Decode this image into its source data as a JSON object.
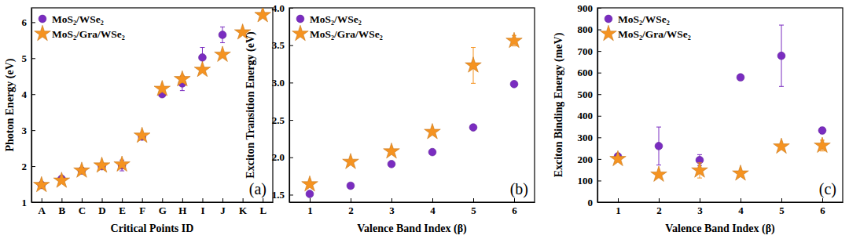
{
  "chart_data": [
    {
      "type": "scatter",
      "xlabel": "Critical Points ID",
      "ylabel": "Photon Energy (eV)",
      "categories": [
        "A",
        "B",
        "C",
        "D",
        "E",
        "F",
        "G",
        "H",
        "I",
        "J",
        "K",
        "L"
      ],
      "ylim": [
        1,
        6.4
      ],
      "yticks": [
        1,
        2,
        3,
        4,
        5,
        6
      ],
      "grid": false,
      "legend": "upper left",
      "annotations": [
        "(a)"
      ],
      "series": [
        {
          "name": "MoS₂/WSe₂",
          "color": "#7a2cc0",
          "marker": "circle",
          "values": [
            1.48,
            1.65,
            1.88,
            2.0,
            2.02,
            2.82,
            4.0,
            4.3,
            5.02,
            5.65,
            null,
            null
          ],
          "errors": [
            0.02,
            0.02,
            0.03,
            0.05,
            0.15,
            0.05,
            0.03,
            0.2,
            0.28,
            0.22,
            null,
            null
          ]
        },
        {
          "name": "MoS₂/Gra/WSe₂",
          "color": "#f59321",
          "marker": "star",
          "values": [
            1.48,
            1.6,
            1.88,
            2.02,
            2.05,
            2.85,
            4.15,
            4.42,
            4.68,
            5.1,
            5.72,
            6.2
          ],
          "errors": [
            0.02,
            0.02,
            0.02,
            0.03,
            0.05,
            0.03,
            0.03,
            0.1,
            0.05,
            0.03,
            0.03,
            0.03
          ]
        }
      ]
    },
    {
      "type": "scatter",
      "xlabel": "Valence Band Index (β)",
      "ylabel": "Exciton Transition Energy (eV)",
      "x": [
        1,
        2,
        3,
        4,
        5,
        6
      ],
      "xlim": [
        0.5,
        6.5
      ],
      "xticks": [
        1,
        2,
        3,
        4,
        5,
        6
      ],
      "ylim": [
        1.4,
        4.0
      ],
      "yticks": [
        1.5,
        {
          "value": 2,
          "label": "2.0"
        },
        2.5,
        {
          "value": 3,
          "label": "3.0"
        },
        3.5,
        {
          "value": 4,
          "label": "4.0"
        }
      ],
      "grid": false,
      "legend": "upper left",
      "annotations": [
        "(b)"
      ],
      "series": [
        {
          "name": "MoS₂/WSe₂",
          "color": "#7a2cc0",
          "marker": "circle",
          "values": [
            1.51,
            1.62,
            1.91,
            2.07,
            2.4,
            2.98
          ],
          "errors": [
            0.01,
            0.01,
            0.01,
            0.01,
            0.01,
            0.01
          ]
        },
        {
          "name": "MoS₂/Gra/WSe₂",
          "color": "#f59321",
          "marker": "star",
          "values": [
            1.64,
            1.94,
            2.08,
            2.34,
            3.23,
            3.56
          ],
          "errors": [
            0.02,
            0.02,
            0.02,
            0.02,
            0.24,
            0.07
          ]
        }
      ]
    },
    {
      "type": "scatter",
      "xlabel": "Valence Band Index (β)",
      "ylabel": "Exciton Binding Energy (meV)",
      "x": [
        1,
        2,
        3,
        4,
        5,
        6
      ],
      "xlim": [
        0.5,
        6.5
      ],
      "xticks": [
        1,
        2,
        3,
        4,
        5,
        6
      ],
      "ylim": [
        0,
        900
      ],
      "yticks": [
        0,
        100,
        200,
        300,
        400,
        500,
        600,
        700,
        800,
        900
      ],
      "grid": false,
      "legend": "upper left",
      "annotations": [
        "(c)"
      ],
      "series": [
        {
          "name": "MoS₂/WSe₂",
          "color": "#7a2cc0",
          "marker": "circle",
          "values": [
            212,
            260,
            195,
            578,
            678,
            332
          ],
          "errors": [
            15,
            88,
            25,
            5,
            142,
            15
          ]
        },
        {
          "name": "MoS₂/Gra/WSe₂",
          "color": "#f59321",
          "marker": "star",
          "values": [
            200,
            128,
            147,
            133,
            258,
            262
          ],
          "errors": [
            10,
            5,
            35,
            5,
            8,
            25
          ]
        }
      ]
    }
  ]
}
